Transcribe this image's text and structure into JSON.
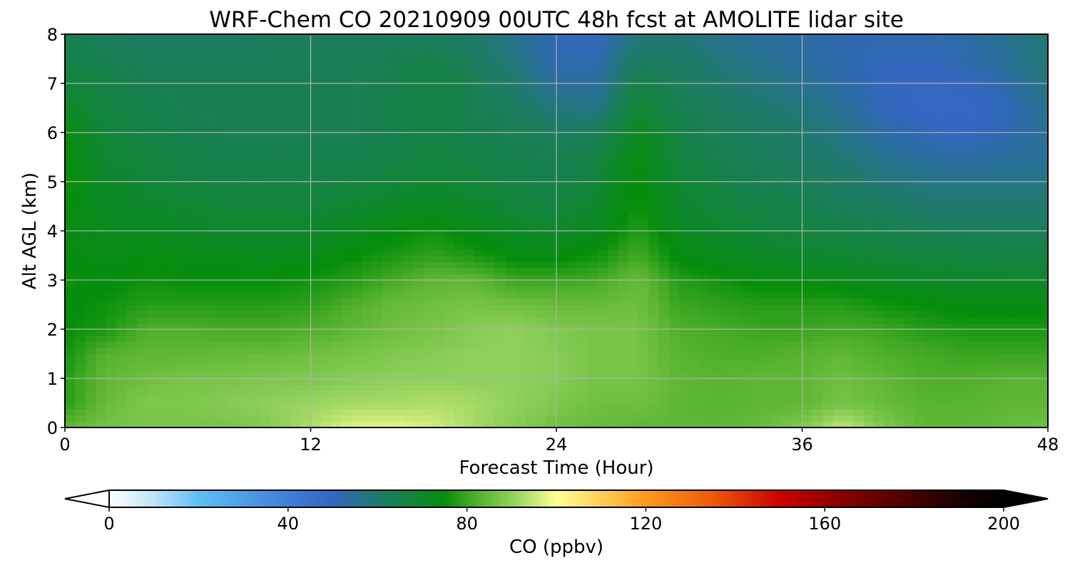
{
  "chart_data": {
    "type": "heatmap",
    "title": "WRF-Chem CO  20210909 00UTC 48h fcst at AMOLITE lidar site",
    "xlabel": "Forecast Time (Hour)",
    "ylabel": "Alt AGL (km)",
    "xlim": [
      0,
      48
    ],
    "ylim": [
      0,
      8
    ],
    "xticks": [
      0,
      12,
      24,
      36,
      48
    ],
    "yticks": [
      0,
      1,
      2,
      3,
      4,
      5,
      6,
      7,
      8
    ],
    "grid": true,
    "x": [
      0,
      2,
      4,
      6,
      8,
      10,
      12,
      14,
      16,
      18,
      20,
      22,
      24,
      26,
      28,
      30,
      32,
      34,
      36,
      38,
      40,
      42,
      44,
      46,
      48
    ],
    "y": [
      0,
      0.5,
      1,
      1.5,
      2,
      2.5,
      3,
      3.5,
      4,
      4.5,
      5,
      5.5,
      6,
      6.5,
      7,
      7.5,
      8
    ],
    "z": [
      [
        84,
        87,
        87,
        87,
        87,
        89,
        93,
        97,
        98,
        96,
        92,
        89,
        86,
        85,
        84,
        84,
        84,
        85,
        88,
        95,
        88,
        84,
        84,
        85,
        86
      ],
      [
        78,
        85,
        88,
        88,
        89,
        90,
        91,
        92,
        92,
        93,
        92,
        90,
        88,
        86,
        86,
        84,
        83,
        84,
        84,
        87,
        85,
        83,
        83,
        84,
        84
      ],
      [
        78,
        84,
        86,
        87,
        87,
        88,
        88,
        89,
        90,
        90,
        90,
        90,
        89,
        87,
        87,
        84,
        83,
        84,
        84,
        86,
        84,
        82,
        82,
        83,
        83
      ],
      [
        76,
        83,
        84,
        84,
        85,
        85,
        86,
        87,
        88,
        89,
        90,
        90,
        89,
        87,
        87,
        83,
        82,
        82,
        83,
        84,
        82,
        81,
        80,
        80,
        80
      ],
      [
        75,
        77,
        82,
        82,
        81,
        81,
        82,
        84,
        86,
        87,
        89,
        90,
        88,
        87,
        87,
        82,
        81,
        80,
        80,
        81,
        80,
        78,
        77,
        77,
        77
      ],
      [
        74,
        76,
        78,
        78,
        78,
        78,
        79,
        82,
        85,
        86,
        87,
        86,
        85,
        85,
        86,
        80,
        79,
        78,
        78,
        78,
        76,
        75,
        74,
        74,
        74
      ],
      [
        76,
        74,
        76,
        75,
        75,
        75,
        76,
        78,
        81,
        84,
        84,
        80,
        80,
        81,
        85,
        78,
        76,
        74,
        74,
        73,
        72,
        71,
        70,
        70,
        70
      ],
      [
        74,
        73,
        74,
        73,
        73,
        72,
        73,
        75,
        77,
        79,
        77,
        74,
        74,
        76,
        81,
        74,
        72,
        71,
        70,
        69,
        68,
        67,
        67,
        66,
        66
      ],
      [
        74,
        72,
        72,
        71,
        70,
        70,
        70,
        72,
        74,
        76,
        73,
        71,
        70,
        72,
        78,
        72,
        70,
        68,
        67,
        66,
        65,
        64,
        63,
        63,
        63
      ],
      [
        75,
        71,
        70,
        69,
        68,
        68,
        68,
        69,
        71,
        72,
        70,
        68,
        67,
        70,
        76,
        70,
        68,
        66,
        65,
        63,
        62,
        60,
        60,
        60,
        60
      ],
      [
        76,
        71,
        68,
        67,
        66,
        66,
        66,
        67,
        68,
        69,
        68,
        66,
        65,
        68,
        75,
        69,
        66,
        64,
        63,
        61,
        59,
        57,
        57,
        57,
        57
      ],
      [
        75,
        69,
        67,
        66,
        65,
        65,
        65,
        65,
        66,
        67,
        66,
        65,
        64,
        66,
        74,
        67,
        64,
        63,
        61,
        59,
        56,
        54,
        53,
        54,
        55
      ],
      [
        74,
        68,
        66,
        65,
        64,
        64,
        64,
        64,
        65,
        66,
        65,
        64,
        62,
        63,
        72,
        66,
        63,
        62,
        60,
        57,
        53,
        51,
        50,
        52,
        55
      ],
      [
        71,
        67,
        65,
        64,
        64,
        64,
        64,
        64,
        65,
        67,
        64,
        62,
        58,
        57,
        69,
        64,
        62,
        60,
        58,
        55,
        51,
        49,
        49,
        51,
        56
      ],
      [
        68,
        66,
        64,
        64,
        64,
        64,
        64,
        64,
        65,
        67,
        64,
        60,
        54,
        54,
        66,
        63,
        60,
        58,
        56,
        53,
        50,
        49,
        50,
        53,
        58
      ],
      [
        66,
        64,
        63,
        63,
        63,
        63,
        63,
        63,
        64,
        65,
        62,
        58,
        52,
        52,
        62,
        61,
        58,
        56,
        54,
        52,
        51,
        51,
        52,
        55,
        59
      ],
      [
        64,
        62,
        61,
        61,
        61,
        62,
        62,
        62,
        62,
        62,
        60,
        56,
        51,
        50,
        58,
        59,
        56,
        54,
        53,
        52,
        52,
        52,
        53,
        56,
        59
      ]
    ],
    "colorbar": {
      "label": "CO  (ppbv)",
      "min": 0,
      "max": 200,
      "ticks": [
        0,
        40,
        80,
        120,
        160,
        200
      ],
      "extend": "both",
      "colors": [
        "#ffffff",
        "#bfe3f7",
        "#5ebef5",
        "#3f7fd8",
        "#3366c0",
        "#1f7a6c",
        "#058e0b",
        "#4faf2a",
        "#8fd05a",
        "#ffff96",
        "#ffcf5a",
        "#ff9a1a",
        "#ec5a0a",
        "#cc0000",
        "#9a0000",
        "#5a0000",
        "#1a0000",
        "#000000"
      ],
      "color_levels": [
        0,
        10,
        20,
        40,
        50,
        60,
        75,
        82,
        90,
        100,
        110,
        120,
        135,
        150,
        160,
        175,
        190,
        200
      ]
    }
  }
}
